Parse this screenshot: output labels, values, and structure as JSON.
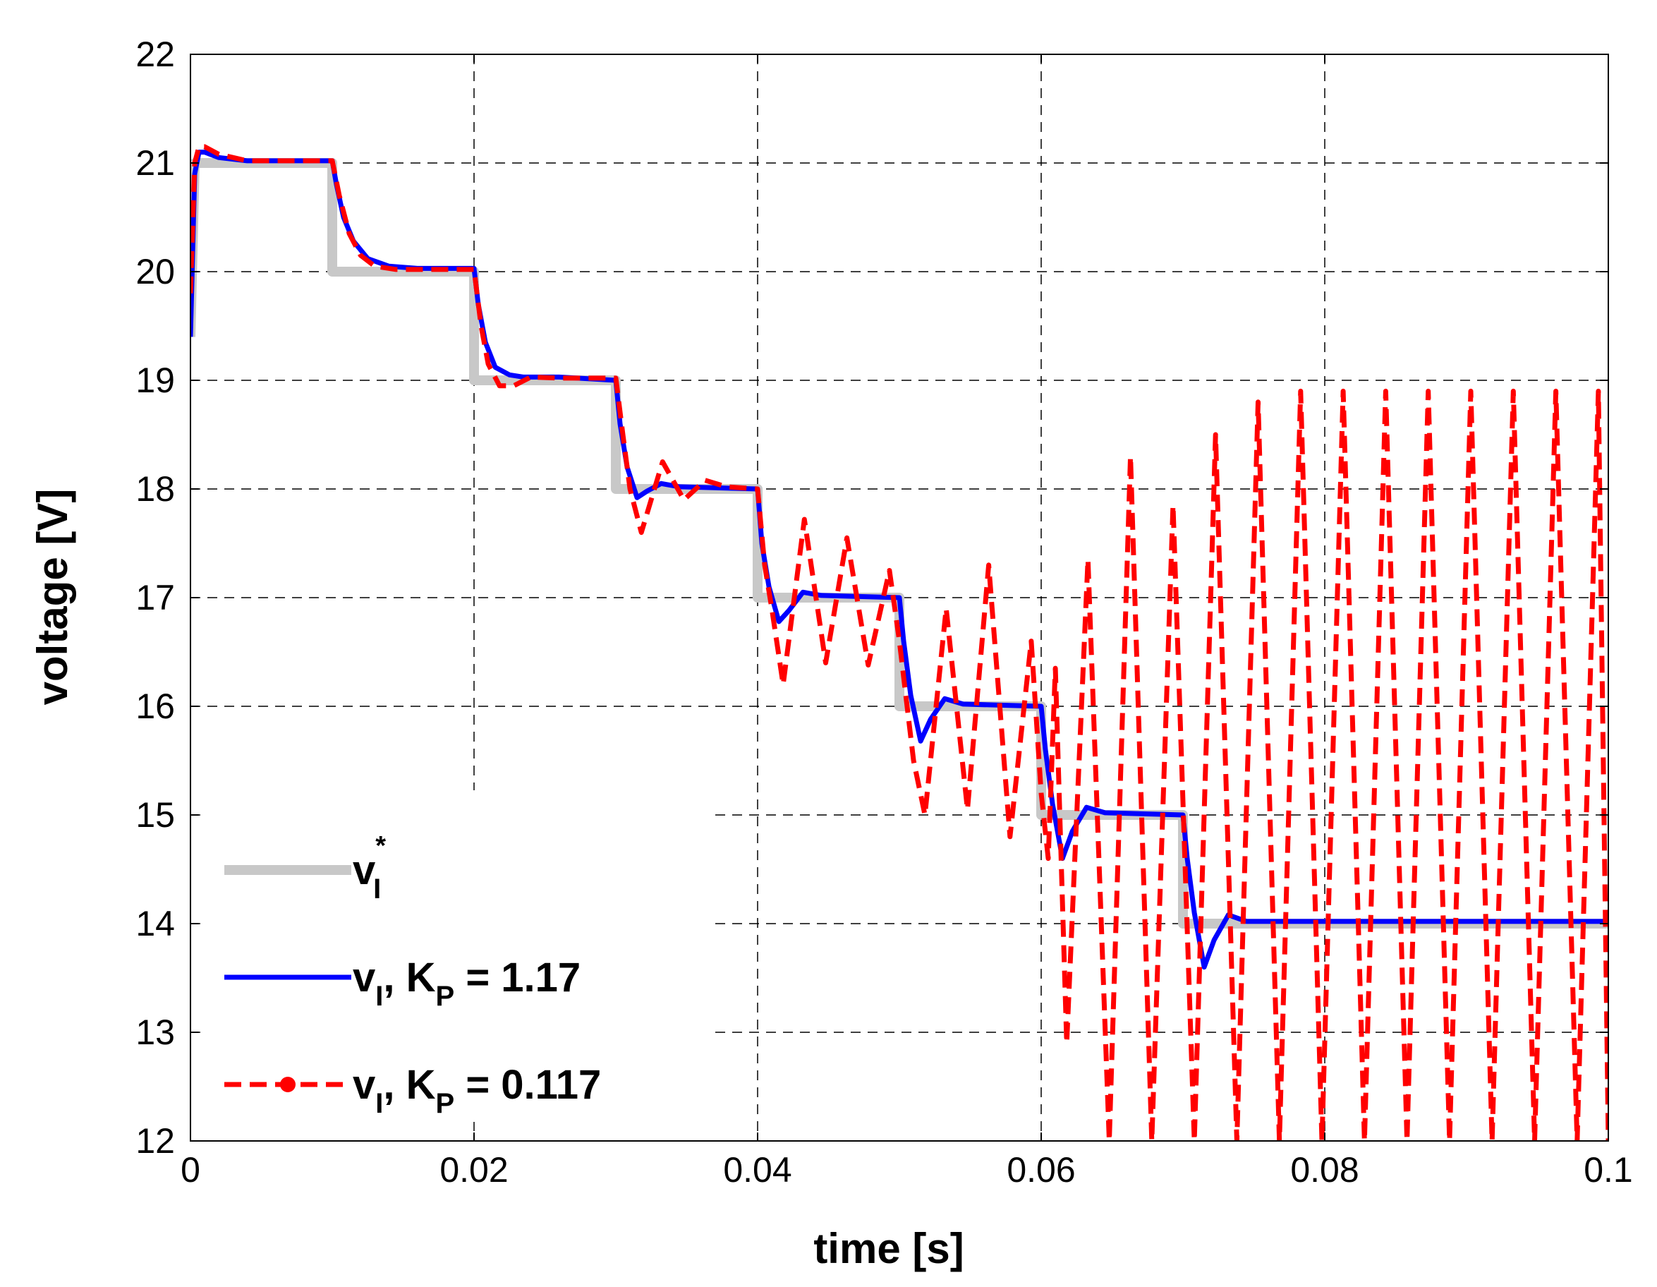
{
  "chart_data": {
    "type": "line",
    "xlabel": "time [s]",
    "ylabel": "voltage [V]",
    "xlim": [
      0,
      0.1
    ],
    "ylim": [
      12,
      22
    ],
    "x_ticks": [
      0,
      0.02,
      0.04,
      0.06,
      0.08,
      0.1
    ],
    "x_tick_labels": [
      "0",
      "0.02",
      "0.04",
      "0.06",
      "0.08",
      "0.1"
    ],
    "y_ticks": [
      12,
      13,
      14,
      15,
      16,
      17,
      18,
      19,
      20,
      21,
      22
    ],
    "y_tick_labels": [
      "12",
      "13",
      "14",
      "15",
      "16",
      "17",
      "18",
      "19",
      "20",
      "21",
      "22"
    ],
    "grid": true,
    "grid_style": "dashed",
    "legend_position": "bottom-left",
    "series": [
      {
        "key": "ref",
        "legend": {
          "base": "v",
          "sub": "I",
          "sup": "*",
          "tail": ""
        },
        "color": "#c8c8c8",
        "style": "solid",
        "x": [
          0,
          0.0003,
          0.01,
          0.01,
          0.02,
          0.02,
          0.03,
          0.03,
          0.04,
          0.04,
          0.05,
          0.05,
          0.06,
          0.06,
          0.07,
          0.07,
          0.1
        ],
        "y": [
          19.4,
          21.0,
          21.0,
          20.0,
          20.0,
          19.0,
          19.0,
          18.0,
          18.0,
          17.0,
          17.0,
          16.0,
          16.0,
          15.0,
          15.0,
          14.0,
          14.0
        ]
      },
      {
        "key": "kp_high",
        "legend": {
          "base": "v",
          "sub": "I",
          "sup": "",
          "tail": ", K",
          "tail_sub": "P",
          "tail_end": " = 1.17"
        },
        "color": "#0000ff",
        "style": "solid",
        "x": [
          0,
          0.0003,
          0.0006,
          0.001,
          0.002,
          0.004,
          0.01,
          0.0103,
          0.0108,
          0.0115,
          0.0125,
          0.014,
          0.016,
          0.02,
          0.0203,
          0.0208,
          0.0215,
          0.0225,
          0.0235,
          0.026,
          0.03,
          0.0303,
          0.0308,
          0.0315,
          0.0322,
          0.0332,
          0.0345,
          0.04,
          0.0403,
          0.0408,
          0.0415,
          0.0422,
          0.0432,
          0.0445,
          0.05,
          0.0503,
          0.0508,
          0.0515,
          0.0522,
          0.0532,
          0.0545,
          0.06,
          0.0603,
          0.0608,
          0.0615,
          0.0622,
          0.0632,
          0.0645,
          0.07,
          0.0703,
          0.0708,
          0.0715,
          0.0722,
          0.0732,
          0.0745,
          0.1
        ],
        "y": [
          19.4,
          20.9,
          21.1,
          21.1,
          21.05,
          21.02,
          21.02,
          20.8,
          20.5,
          20.28,
          20.12,
          20.05,
          20.03,
          20.03,
          19.7,
          19.35,
          19.12,
          19.05,
          19.03,
          19.03,
          19.0,
          18.6,
          18.2,
          17.92,
          17.98,
          18.05,
          18.02,
          18.0,
          17.5,
          17.1,
          16.78,
          16.88,
          17.05,
          17.02,
          17.0,
          16.6,
          16.1,
          15.68,
          15.88,
          16.07,
          16.02,
          16.0,
          15.6,
          15.1,
          14.6,
          14.85,
          15.07,
          15.02,
          15.0,
          14.6,
          14.1,
          13.6,
          13.85,
          14.08,
          14.02,
          14.02
        ]
      },
      {
        "key": "kp_low",
        "legend": {
          "base": "v",
          "sub": "I",
          "sup": "",
          "tail": ", K",
          "tail_sub": "P",
          "tail_end": " = 0.117"
        },
        "color": "#ff0000",
        "style": "dashed",
        "x": [
          0,
          0.0003,
          0.0006,
          0.001,
          0.002,
          0.004,
          0.01,
          0.0105,
          0.0112,
          0.012,
          0.013,
          0.0145,
          0.02,
          0.0205,
          0.021,
          0.0218,
          0.0228,
          0.024,
          0.026,
          0.03,
          0.0305,
          0.031,
          0.0318,
          0.0333,
          0.0348,
          0.0363,
          0.0378,
          0.04,
          0.0405,
          0.041,
          0.0418,
          0.0433,
          0.0448,
          0.0463,
          0.0478,
          0.0493,
          0.05,
          0.0505,
          0.051,
          0.0518,
          0.0533,
          0.0548,
          0.0563,
          0.0578,
          0.0593,
          0.06,
          0.0605,
          0.061,
          0.0618,
          0.0633,
          0.0648,
          0.0663,
          0.0678,
          0.0693,
          0.0708,
          0.0723,
          0.0738,
          0.0753,
          0.0768,
          0.0783,
          0.0798,
          0.0813,
          0.0828,
          0.0843,
          0.0858,
          0.0873,
          0.0888,
          0.0903,
          0.0918,
          0.0933,
          0.0948,
          0.0963,
          0.0978,
          0.0993,
          0.1
        ],
        "y": [
          19.8,
          21.0,
          21.15,
          21.15,
          21.08,
          21.02,
          21.02,
          20.7,
          20.35,
          20.15,
          20.05,
          20.02,
          20.02,
          19.5,
          19.15,
          18.95,
          18.95,
          19.03,
          19.02,
          19.02,
          18.5,
          18.0,
          17.6,
          18.25,
          17.9,
          18.08,
          18.02,
          18.0,
          17.3,
          16.9,
          16.2,
          17.72,
          16.4,
          17.55,
          16.38,
          17.25,
          16.6,
          16.05,
          15.5,
          15.0,
          16.9,
          15.05,
          17.3,
          14.8,
          16.6,
          15.2,
          14.6,
          16.35,
          12.9,
          17.35,
          12.0,
          18.3,
          12.0,
          17.85,
          12.0,
          18.5,
          12.0,
          18.8,
          12.0,
          18.9,
          12.0,
          18.9,
          12.0,
          18.9,
          12.0,
          18.9,
          12.0,
          18.9,
          12.0,
          18.9,
          12.0,
          18.9,
          12.0,
          18.9,
          12.0
        ]
      }
    ]
  }
}
